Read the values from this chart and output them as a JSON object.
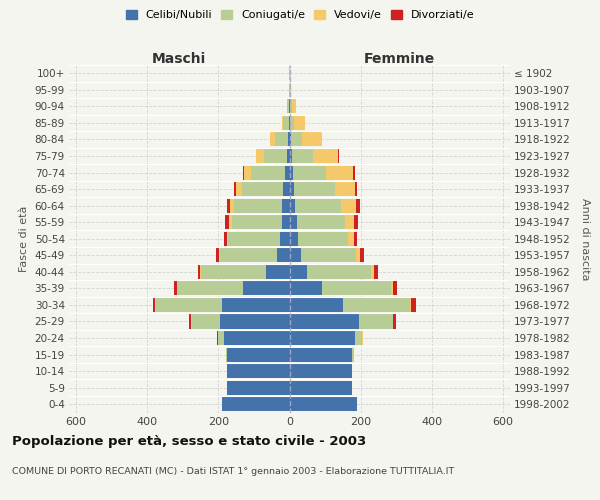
{
  "age_groups": [
    "0-4",
    "5-9",
    "10-14",
    "15-19",
    "20-24",
    "25-29",
    "30-34",
    "35-39",
    "40-44",
    "45-49",
    "50-54",
    "55-59",
    "60-64",
    "65-69",
    "70-74",
    "75-79",
    "80-84",
    "85-89",
    "90-94",
    "95-99",
    "100+"
  ],
  "birth_years": [
    "1998-2002",
    "1993-1997",
    "1988-1992",
    "1983-1987",
    "1978-1982",
    "1973-1977",
    "1968-1972",
    "1963-1967",
    "1958-1962",
    "1953-1957",
    "1948-1952",
    "1943-1947",
    "1938-1942",
    "1933-1937",
    "1928-1932",
    "1923-1927",
    "1918-1922",
    "1913-1917",
    "1908-1912",
    "1903-1907",
    "≤ 1902"
  ],
  "male": {
    "celibe": [
      190,
      175,
      175,
      175,
      185,
      195,
      190,
      130,
      65,
      35,
      28,
      22,
      20,
      18,
      12,
      8,
      4,
      2,
      1,
      0,
      0
    ],
    "coniugato": [
      0,
      0,
      0,
      3,
      15,
      80,
      185,
      185,
      185,
      160,
      145,
      140,
      135,
      115,
      95,
      65,
      38,
      15,
      5,
      2,
      1
    ],
    "vedovo": [
      0,
      0,
      0,
      0,
      1,
      2,
      2,
      2,
      2,
      3,
      4,
      8,
      12,
      18,
      20,
      20,
      12,
      5,
      2,
      0,
      0
    ],
    "divorziato": [
      0,
      0,
      0,
      0,
      2,
      5,
      8,
      8,
      5,
      8,
      8,
      12,
      10,
      5,
      3,
      2,
      1,
      0,
      0,
      0,
      0
    ]
  },
  "female": {
    "nubile": [
      190,
      175,
      175,
      175,
      185,
      195,
      150,
      90,
      50,
      32,
      25,
      20,
      16,
      13,
      9,
      6,
      3,
      2,
      1,
      0,
      0
    ],
    "coniugata": [
      0,
      0,
      0,
      5,
      20,
      95,
      190,
      195,
      180,
      155,
      140,
      135,
      130,
      115,
      95,
      60,
      32,
      12,
      5,
      2,
      1
    ],
    "vedova": [
      0,
      0,
      0,
      0,
      1,
      2,
      3,
      5,
      8,
      10,
      15,
      25,
      40,
      55,
      75,
      70,
      55,
      30,
      12,
      2,
      0
    ],
    "divorziata": [
      0,
      0,
      0,
      0,
      2,
      8,
      12,
      12,
      12,
      12,
      10,
      12,
      12,
      8,
      4,
      2,
      1,
      0,
      0,
      0,
      0
    ]
  },
  "colors": {
    "celibe": "#4472aa",
    "coniugato": "#b8cc96",
    "vedovo": "#f5c96a",
    "divorziato": "#cc2222"
  },
  "title": "Popolazione per età, sesso e stato civile - 2003",
  "subtitle": "COMUNE DI PORTO RECANATI (MC) - Dati ISTAT 1° gennaio 2003 - Elaborazione TUTTITALIA.IT",
  "xlabel_left": "Maschi",
  "xlabel_right": "Femmine",
  "ylabel_left": "Fasce di età",
  "ylabel_right": "Anni di nascita",
  "xlim": 620,
  "bg_color": "#f5f5f0",
  "grid_color": "#cccccc",
  "bar_height": 0.85
}
